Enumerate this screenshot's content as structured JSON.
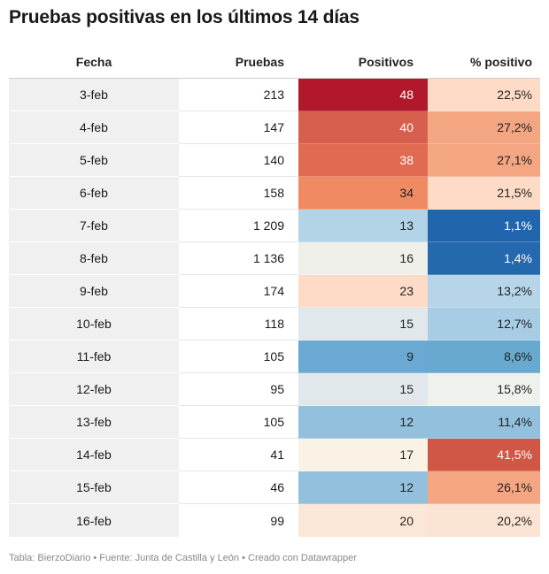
{
  "title": "Pruebas positivas en los últimos 14 días",
  "footer": "Tabla: BierzoDiario • Fuente: Junta de Castilla y León • Creado con Datawrapper",
  "chart_data": {
    "type": "table",
    "title": "Pruebas positivas en los últimos 14 días",
    "columns": [
      "Fecha",
      "Pruebas",
      "Positivos",
      "% positivo"
    ],
    "rows": [
      {
        "fecha": "3-feb",
        "pruebas": "213",
        "positivos": "48",
        "pct": "22,5%",
        "pos_color": "#b2182b",
        "pct_color": "#fddbc7"
      },
      {
        "fecha": "4-feb",
        "pruebas": "147",
        "positivos": "40",
        "pct": "27,2%",
        "pos_color": "#d6604d",
        "pct_color": "#f4a582"
      },
      {
        "fecha": "5-feb",
        "pruebas": "140",
        "positivos": "38",
        "pct": "27,1%",
        "pos_color": "#e06b52",
        "pct_color": "#f4a582"
      },
      {
        "fecha": "6-feb",
        "pruebas": "158",
        "positivos": "34",
        "pct": "21,5%",
        "pos_color": "#ef8a62",
        "pct_color": "#fddbc7"
      },
      {
        "fecha": "7-feb",
        "pruebas": "1 209",
        "positivos": "13",
        "pct": "1,1%",
        "pos_color": "#b3d3e6",
        "pct_color": "#2166ac"
      },
      {
        "fecha": "8-feb",
        "pruebas": "1 136",
        "positivos": "16",
        "pct": "1,4%",
        "pos_color": "#f0f0ea",
        "pct_color": "#2468ad"
      },
      {
        "fecha": "9-feb",
        "pruebas": "174",
        "positivos": "23",
        "pct": "13,2%",
        "pos_color": "#fddbc7",
        "pct_color": "#b7d5e8"
      },
      {
        "fecha": "10-feb",
        "pruebas": "118",
        "positivos": "15",
        "pct": "12,7%",
        "pos_color": "#e1e8ec",
        "pct_color": "#a8cce3"
      },
      {
        "fecha": "11-feb",
        "pruebas": "105",
        "positivos": "9",
        "pct": "8,6%",
        "pos_color": "#6aa9d2",
        "pct_color": "#67a9cf"
      },
      {
        "fecha": "12-feb",
        "pruebas": "95",
        "positivos": "15",
        "pct": "15,8%",
        "pos_color": "#e1e8ec",
        "pct_color": "#eef1ec"
      },
      {
        "fecha": "13-feb",
        "pruebas": "105",
        "positivos": "12",
        "pct": "11,4%",
        "pos_color": "#92c0dd",
        "pct_color": "#92c0dd"
      },
      {
        "fecha": "14-feb",
        "pruebas": "41",
        "positivos": "17",
        "pct": "41,5%",
        "pos_color": "#faf2e5",
        "pct_color": "#d05745"
      },
      {
        "fecha": "15-feb",
        "pruebas": "46",
        "positivos": "12",
        "pct": "26,1%",
        "pos_color": "#92c0dd",
        "pct_color": "#f4a582"
      },
      {
        "fecha": "16-feb",
        "pruebas": "99",
        "positivos": "20",
        "pct": "20,2%",
        "pos_color": "#fbe7d7",
        "pct_color": "#fbe4d4"
      }
    ]
  }
}
